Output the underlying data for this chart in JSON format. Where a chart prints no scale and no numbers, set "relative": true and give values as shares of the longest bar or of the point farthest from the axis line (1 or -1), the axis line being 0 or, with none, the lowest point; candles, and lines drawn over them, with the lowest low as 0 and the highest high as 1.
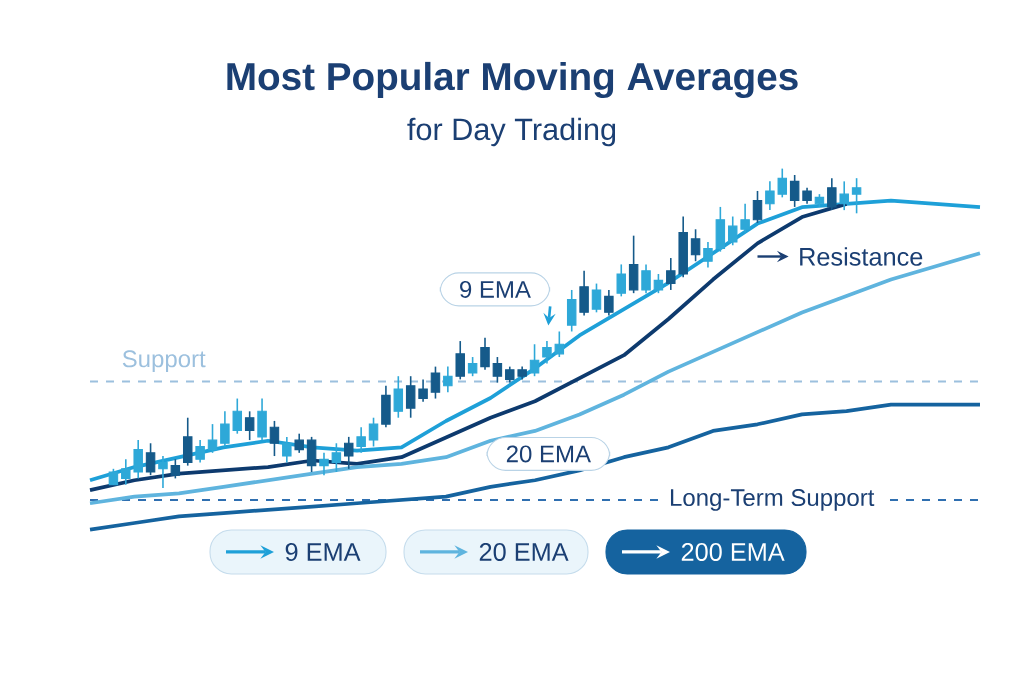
{
  "chart_data": [
    {
      "type": "candlestick",
      "title": "Most Popular Moving Averages",
      "subtitle": "for Day Trading",
      "relative": true,
      "tick_labels": false,
      "categories": [
        null,
        null,
        null,
        null,
        null,
        null,
        null,
        null,
        null,
        null,
        null,
        null,
        null,
        null,
        null,
        null,
        null,
        null,
        null,
        null,
        null,
        null,
        null,
        null,
        null,
        null,
        null,
        null,
        null,
        null,
        null,
        null,
        null,
        null,
        null,
        null,
        null,
        null,
        null,
        null,
        null,
        null,
        null,
        null,
        null,
        null,
        null,
        null,
        null,
        null,
        null,
        null,
        null,
        null,
        null,
        null,
        null,
        null,
        null,
        null,
        null
      ],
      "ohlc": [
        [
          0.01,
          0.06,
          0.01,
          0.05
        ],
        [
          0.03,
          0.09,
          0.01,
          0.06
        ],
        [
          0.05,
          0.15,
          0.03,
          0.12
        ],
        [
          0.11,
          0.14,
          0.04,
          0.05
        ],
        [
          0.06,
          0.1,
          0.0,
          0.08
        ],
        [
          0.07,
          0.09,
          0.03,
          0.04
        ],
        [
          0.16,
          0.22,
          0.07,
          0.08
        ],
        [
          0.09,
          0.15,
          0.08,
          0.13
        ],
        [
          0.12,
          0.2,
          0.11,
          0.15
        ],
        [
          0.14,
          0.24,
          0.13,
          0.2
        ],
        [
          0.18,
          0.28,
          0.17,
          0.24
        ],
        [
          0.22,
          0.24,
          0.15,
          0.18
        ],
        [
          0.16,
          0.28,
          0.15,
          0.24
        ],
        [
          0.19,
          0.21,
          0.1,
          0.14
        ],
        [
          0.1,
          0.16,
          0.08,
          0.14
        ],
        [
          0.15,
          0.17,
          0.11,
          0.12
        ],
        [
          0.15,
          0.16,
          0.05,
          0.07
        ],
        [
          0.07,
          0.11,
          0.04,
          0.09
        ],
        [
          0.08,
          0.14,
          0.05,
          0.11
        ],
        [
          0.14,
          0.16,
          0.06,
          0.1
        ],
        [
          0.13,
          0.19,
          0.11,
          0.16
        ],
        [
          0.15,
          0.22,
          0.13,
          0.2
        ],
        [
          0.29,
          0.32,
          0.19,
          0.2
        ],
        [
          0.24,
          0.35,
          0.22,
          0.31
        ],
        [
          0.32,
          0.35,
          0.22,
          0.25
        ],
        [
          0.31,
          0.34,
          0.27,
          0.28
        ],
        [
          0.36,
          0.38,
          0.28,
          0.3
        ],
        [
          0.32,
          0.38,
          0.3,
          0.35
        ],
        [
          0.42,
          0.46,
          0.34,
          0.35
        ],
        [
          0.36,
          0.41,
          0.35,
          0.39
        ],
        [
          0.44,
          0.47,
          0.37,
          0.38
        ],
        [
          0.39,
          0.41,
          0.33,
          0.35
        ],
        [
          0.37,
          0.38,
          0.33,
          0.34
        ],
        [
          0.37,
          0.38,
          0.34,
          0.35
        ],
        [
          0.36,
          0.45,
          0.35,
          0.4
        ],
        [
          0.41,
          0.46,
          0.39,
          0.44
        ],
        [
          0.42,
          0.49,
          0.41,
          0.45
        ],
        [
          0.51,
          0.62,
          0.49,
          0.59
        ],
        [
          0.63,
          0.68,
          0.54,
          0.55
        ],
        [
          0.56,
          0.64,
          0.55,
          0.62
        ],
        [
          0.6,
          0.62,
          0.54,
          0.55
        ],
        [
          0.61,
          0.7,
          0.6,
          0.67
        ],
        [
          0.7,
          0.79,
          0.61,
          0.62
        ],
        [
          0.62,
          0.7,
          0.61,
          0.68
        ],
        [
          0.62,
          0.67,
          0.61,
          0.65
        ],
        [
          0.68,
          0.72,
          0.62,
          0.64
        ],
        [
          0.8,
          0.85,
          0.66,
          0.67
        ],
        [
          0.78,
          0.81,
          0.71,
          0.73
        ],
        [
          0.71,
          0.77,
          0.69,
          0.75
        ],
        [
          0.75,
          0.88,
          0.74,
          0.84
        ],
        [
          0.77,
          0.85,
          0.76,
          0.82
        ],
        [
          0.81,
          0.89,
          0.8,
          0.84
        ],
        [
          0.9,
          0.93,
          0.83,
          0.84
        ],
        [
          0.89,
          0.96,
          0.87,
          0.93
        ],
        [
          0.92,
          1.0,
          0.91,
          0.97
        ],
        [
          0.96,
          0.98,
          0.88,
          0.9
        ],
        [
          0.93,
          0.94,
          0.89,
          0.9
        ],
        [
          0.89,
          0.92,
          0.88,
          0.91
        ],
        [
          0.94,
          0.97,
          0.87,
          0.88
        ],
        [
          0.89,
          0.96,
          0.87,
          0.92
        ],
        [
          0.92,
          0.97,
          0.86,
          0.94
        ]
      ],
      "colors": [
        "#2ea8d8",
        "#2ea8d8",
        "#2ea8d8",
        "#155a8a",
        "#2ea8d8",
        "#155a8a",
        "#155a8a",
        "#2ea8d8",
        "#2ea8d8",
        "#2ea8d8",
        "#2ea8d8",
        "#155a8a",
        "#2ea8d8",
        "#155a8a",
        "#2ea8d8",
        "#155a8a",
        "#155a8a",
        "#2ea8d8",
        "#2ea8d8",
        "#155a8a",
        "#2ea8d8",
        "#2ea8d8",
        "#155a8a",
        "#2ea8d8",
        "#155a8a",
        "#155a8a",
        "#155a8a",
        "#2ea8d8",
        "#155a8a",
        "#2ea8d8",
        "#155a8a",
        "#155a8a",
        "#155a8a",
        "#155a8a",
        "#2ea8d8",
        "#2ea8d8",
        "#2ea8d8",
        "#2ea8d8",
        "#155a8a",
        "#2ea8d8",
        "#155a8a",
        "#2ea8d8",
        "#155a8a",
        "#2ea8d8",
        "#2ea8d8",
        "#155a8a",
        "#155a8a",
        "#155a8a",
        "#2ea8d8",
        "#2ea8d8",
        "#2ea8d8",
        "#2ea8d8",
        "#155a8a",
        "#2ea8d8",
        "#2ea8d8",
        "#155a8a",
        "#155a8a",
        "#2ea8d8",
        "#155a8a",
        "#2ea8d8",
        "#2ea8d8"
      ]
    },
    {
      "type": "line",
      "relative": true,
      "tick_labels": false,
      "legend": "bottom",
      "categories": [
        null,
        null,
        null,
        null,
        null,
        null,
        null,
        null,
        null,
        null,
        null,
        null,
        null,
        null,
        null,
        null,
        null,
        null,
        null,
        null,
        null
      ],
      "series": [
        {
          "name": "9 EMA",
          "color": "#1ea0d8",
          "values": [
            0.15,
            0.19,
            0.22,
            0.25,
            0.27,
            0.25,
            0.24,
            0.25,
            0.33,
            0.4,
            0.49,
            0.59,
            0.67,
            0.75,
            0.84,
            0.93,
            0.98,
            0.99,
            1.0,
            0.99,
            0.98
          ]
        },
        {
          "color": "#0d3a6e",
          "values": [
            0.12,
            0.15,
            0.17,
            0.18,
            0.19,
            0.21,
            0.2,
            0.22,
            0.28,
            0.34,
            0.39,
            0.46,
            0.53,
            0.64,
            0.76,
            0.87,
            0.95,
            0.99,
            null,
            null,
            null
          ]
        },
        {
          "name": "20 EMA",
          "color": "#5fb4de",
          "values": [
            0.08,
            0.1,
            0.11,
            0.13,
            0.15,
            0.17,
            0.19,
            0.2,
            0.22,
            0.27,
            0.3,
            0.35,
            0.41,
            0.48,
            0.54,
            0.6,
            0.66,
            0.71,
            0.76,
            0.8,
            0.84
          ]
        },
        {
          "name": "200 EMA",
          "color": "#15639f",
          "values": [
            0.0,
            0.02,
            0.04,
            0.05,
            0.06,
            0.07,
            0.08,
            0.09,
            0.1,
            0.13,
            0.15,
            0.18,
            0.22,
            0.25,
            0.3,
            0.32,
            0.35,
            0.36,
            0.38,
            0.38,
            0.38
          ]
        }
      ],
      "ref_lines": [
        {
          "axis": "y",
          "value": 0.45,
          "label": "Support",
          "color": "#9cc0de",
          "line_style": "dashed"
        },
        {
          "axis": "y",
          "value": 0.09,
          "label": "Long-Term Support",
          "color": "#2f6fb0",
          "line_style": "dashed"
        }
      ],
      "annotations": [
        "9 EMA",
        "Resistance",
        "20 EMA"
      ]
    }
  ]
}
